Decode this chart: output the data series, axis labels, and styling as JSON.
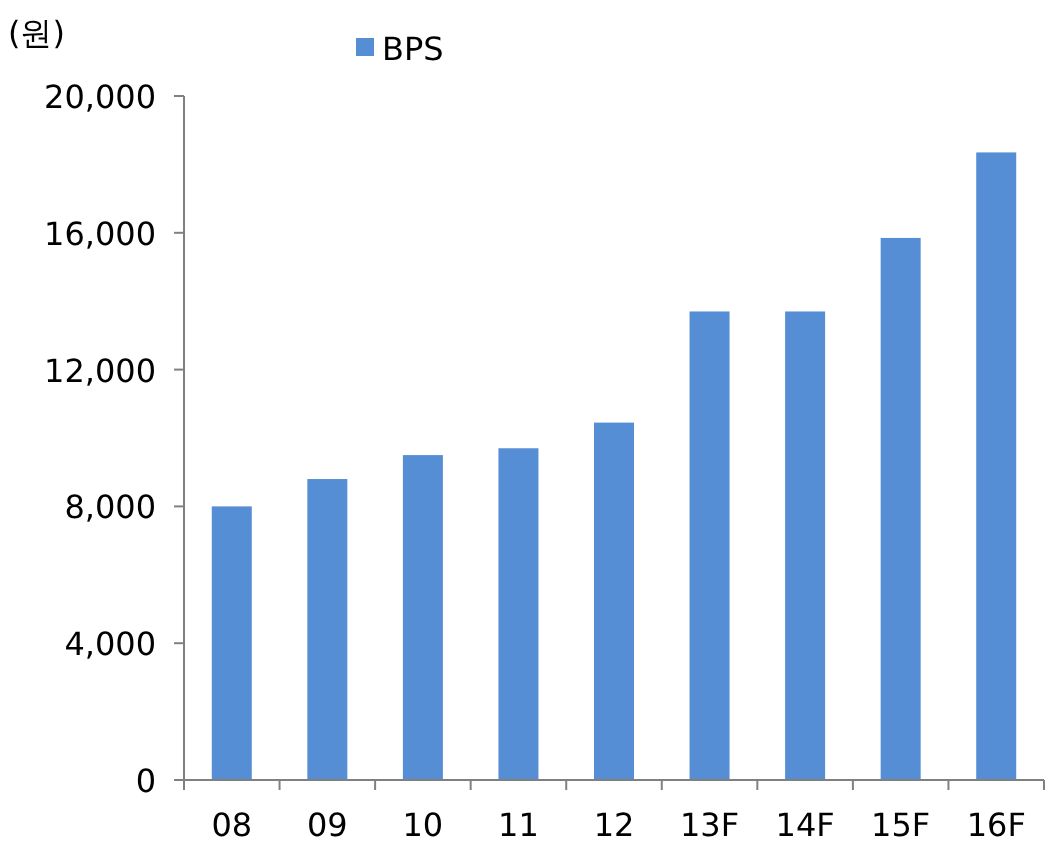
{
  "chart_data": {
    "type": "bar",
    "ylabel": "(원)",
    "categories": [
      "08",
      "09",
      "10",
      "11",
      "12",
      "13F",
      "14F",
      "15F",
      "16F"
    ],
    "series": [
      {
        "name": "BPS",
        "color": "#558ed5",
        "values": [
          8000,
          8800,
          9500,
          9700,
          10450,
          13700,
          13700,
          15850,
          18350
        ]
      }
    ],
    "ylim": [
      0,
      20000
    ],
    "yticks": [
      {
        "value": 0,
        "label": "0"
      },
      {
        "value": 4000,
        "label": "4,000"
      },
      {
        "value": 8000,
        "label": "8,000"
      },
      {
        "value": 12000,
        "label": "12,000"
      },
      {
        "value": 16000,
        "label": "16,000"
      },
      {
        "value": 20000,
        "label": "20,000"
      }
    ],
    "legend": "top",
    "grid": false
  }
}
